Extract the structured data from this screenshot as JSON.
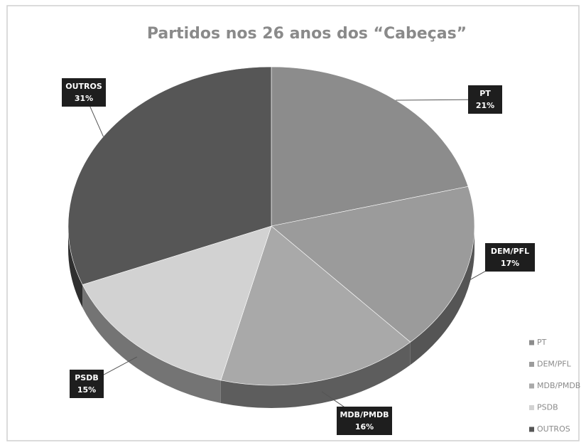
{
  "chart_data": {
    "type": "pie",
    "title": "Partidos nos 26 anos dos “Cabeças”",
    "categories": [
      "PT",
      "DEM/PFL",
      "MDB/PMDB",
      "PSDB",
      "OUTROS"
    ],
    "values": [
      21,
      17,
      16,
      15,
      31
    ],
    "value_labels": [
      "21%",
      "17%",
      "16%",
      "15%",
      "31%"
    ],
    "colors": [
      "#8c8c8c",
      "#9b9b9b",
      "#a9a9a9",
      "#d2d2d2",
      "#565656"
    ],
    "legend": "bottom-right"
  }
}
